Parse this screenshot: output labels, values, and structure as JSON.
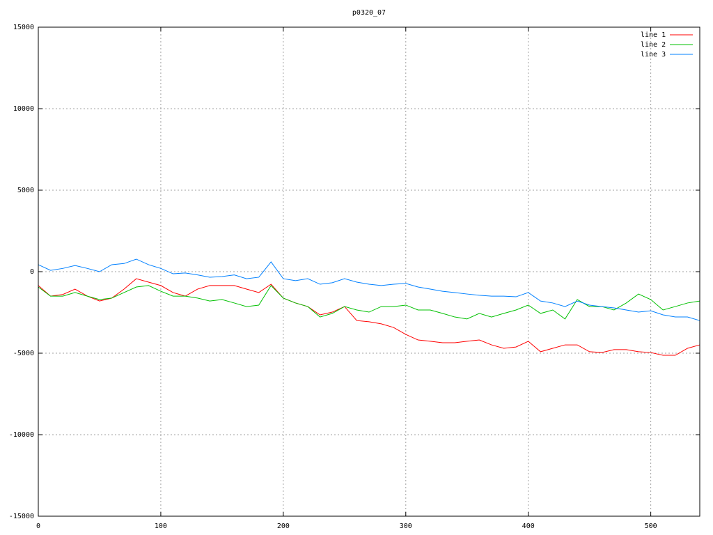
{
  "chart_data": {
    "type": "line",
    "title": "p0320_07",
    "x": [
      0,
      10,
      20,
      30,
      40,
      50,
      60,
      70,
      80,
      90,
      100,
      110,
      120,
      130,
      140,
      150,
      160,
      170,
      180,
      190,
      200,
      210,
      220,
      230,
      240,
      250,
      260,
      270,
      280,
      290,
      300,
      310,
      320,
      330,
      340,
      350,
      360,
      370,
      380,
      390,
      400,
      410,
      420,
      430,
      440,
      450,
      460,
      470,
      480,
      490,
      500,
      510,
      520,
      530,
      540
    ],
    "series": [
      {
        "name": "line 1",
        "color": "#ff0000",
        "values": [
          -850,
          -1500,
          -1400,
          -1070,
          -1500,
          -1800,
          -1620,
          -1070,
          -430,
          -640,
          -850,
          -1280,
          -1500,
          -1070,
          -850,
          -850,
          -850,
          -1070,
          -1280,
          -770,
          -1620,
          -1920,
          -2140,
          -2650,
          -2480,
          -2140,
          -3000,
          -3070,
          -3200,
          -3420,
          -3850,
          -4190,
          -4270,
          -4360,
          -4360,
          -4270,
          -4190,
          -4490,
          -4700,
          -4620,
          -4270,
          -4910,
          -4700,
          -4490,
          -4490,
          -4910,
          -4960,
          -4780,
          -4780,
          -4910,
          -4960,
          -5130,
          -5130,
          -4700,
          -4490
        ]
      },
      {
        "name": "line 2",
        "color": "#00c000",
        "values": [
          -940,
          -1500,
          -1500,
          -1280,
          -1500,
          -1710,
          -1620,
          -1280,
          -940,
          -850,
          -1200,
          -1500,
          -1500,
          -1620,
          -1800,
          -1710,
          -1920,
          -2140,
          -2050,
          -850,
          -1620,
          -1920,
          -2140,
          -2780,
          -2560,
          -2140,
          -2350,
          -2480,
          -2140,
          -2140,
          -2050,
          -2350,
          -2350,
          -2560,
          -2780,
          -2900,
          -2560,
          -2780,
          -2560,
          -2350,
          -2050,
          -2560,
          -2350,
          -2900,
          -1710,
          -2140,
          -2140,
          -2350,
          -1920,
          -1370,
          -1710,
          -2350,
          -2140,
          -1920,
          -1800
        ]
      },
      {
        "name": "line 3",
        "color": "#0080ff",
        "values": [
          430,
          80,
          200,
          380,
          200,
          0,
          430,
          500,
          770,
          430,
          200,
          -130,
          -80,
          -200,
          -340,
          -300,
          -200,
          -430,
          -340,
          600,
          -430,
          -550,
          -430,
          -770,
          -680,
          -430,
          -640,
          -770,
          -850,
          -770,
          -720,
          -940,
          -1070,
          -1200,
          -1280,
          -1370,
          -1450,
          -1500,
          -1500,
          -1540,
          -1280,
          -1800,
          -1920,
          -2140,
          -1800,
          -2050,
          -2140,
          -2220,
          -2350,
          -2480,
          -2400,
          -2650,
          -2780,
          -2780,
          -3000
        ]
      }
    ],
    "xlim": [
      0,
      540
    ],
    "xticks": [
      0,
      100,
      200,
      300,
      400,
      500
    ],
    "ylim": [
      -15000,
      15000
    ],
    "yticks": [
      -15000,
      -10000,
      -5000,
      0,
      5000,
      10000,
      15000
    ],
    "grid": true,
    "legend": "top-right"
  }
}
